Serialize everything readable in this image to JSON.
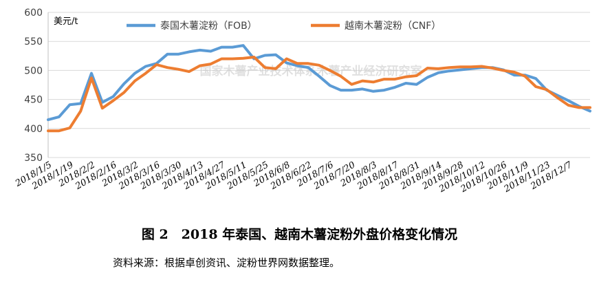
{
  "chart_data": {
    "type": "line",
    "title": "",
    "unit_label": "美元/t",
    "watermark": "国家木薯产业技术体系木薯产业经济研究室",
    "ylim": [
      350,
      600
    ],
    "yticks": [
      350,
      400,
      450,
      500,
      550,
      600
    ],
    "grid": true,
    "legend_position": "top",
    "x_tick_labels": [
      "2018/1/5",
      "2018/1/19",
      "2018/2/2",
      "2018/2/16",
      "2018/3/2",
      "2018/3/16",
      "2018/3/30",
      "2018/4/13",
      "2018/4/27",
      "2018/5/11",
      "2018/5/25",
      "2018/6/8",
      "2018/6/22",
      "2018/7/6",
      "2018/7/20",
      "2018/8/3",
      "2018/8/17",
      "2018/8/31",
      "2018/9/14",
      "2018/9/28",
      "2018/10/12",
      "2018/10/26",
      "2018/11/9",
      "2018/11/23",
      "2018/12/7"
    ],
    "series": [
      {
        "name": "泰国木薯淀粉（FOB）",
        "color": "#5b9bd5",
        "values": [
          415,
          420,
          441,
          443,
          495,
          445,
          455,
          477,
          495,
          507,
          512,
          528,
          528,
          532,
          535,
          533,
          540,
          540,
          543,
          520,
          526,
          527,
          513,
          508,
          505,
          490,
          474,
          466,
          466,
          468,
          464,
          466,
          471,
          478,
          476,
          488,
          496,
          499,
          501,
          503,
          505,
          505,
          501,
          492,
          492,
          486,
          466,
          457,
          448,
          438,
          430
        ]
      },
      {
        "name": "越南木薯淀粉（CNF）",
        "color": "#ed7d31",
        "values": [
          396,
          396,
          401,
          430,
          487,
          435,
          448,
          462,
          482,
          495,
          510,
          505,
          502,
          498,
          508,
          511,
          520,
          520,
          521,
          523,
          505,
          503,
          520,
          512,
          512,
          509,
          500,
          490,
          476,
          482,
          480,
          485,
          485,
          489,
          491,
          504,
          503,
          505,
          506,
          506,
          507,
          504,
          500,
          497,
          490,
          472,
          467,
          453,
          440,
          436,
          436
        ]
      }
    ]
  },
  "caption": "图 2　2018 年泰国、越南木薯淀粉外盘价格变化情况",
  "source": "资料来源：根据卓创资讯、淀粉世界网数据整理。"
}
